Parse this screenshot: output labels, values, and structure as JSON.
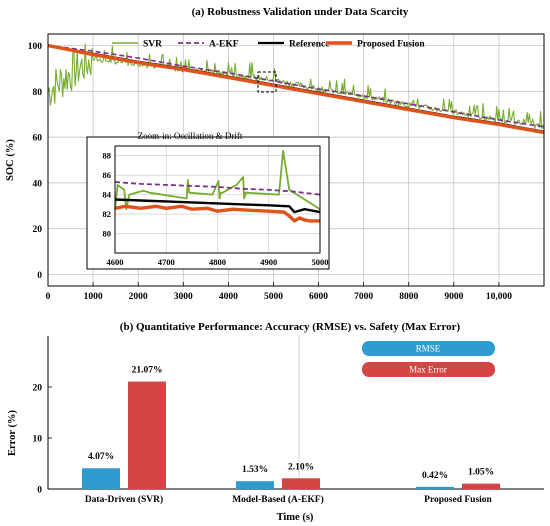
{
  "chart_data": [
    {
      "type": "line",
      "title": "(a) Robustness Validation under Data Scarcity",
      "xlabel": "",
      "ylabel": "SOC (%)",
      "xlim": [
        0,
        11000
      ],
      "ylim": [
        -5,
        105
      ],
      "grid": true,
      "legend_placement": "top",
      "x_ticks": [
        0,
        1000,
        2000,
        3000,
        4000,
        5000,
        6000,
        7000,
        8000,
        9000,
        10000
      ],
      "x_tick_labels": [
        "0",
        "1000",
        "2000",
        "3000",
        "4000",
        "5000",
        "6000",
        "7000",
        "8000",
        "9000",
        "10,000"
      ],
      "y_ticks": [
        0,
        20,
        40,
        60,
        80,
        100
      ],
      "y_tick_labels": [
        "0",
        "20",
        "40",
        "60",
        "80",
        "100"
      ],
      "series": [
        {
          "name": "SVR",
          "color": "#77ac30",
          "style": "solid",
          "x": [
            0,
            500,
            1000,
            2000,
            3000,
            4000,
            5000,
            6000,
            7000,
            8000,
            9000,
            10000,
            11000
          ],
          "y": [
            80,
            88,
            94,
            92,
            89.5,
            87.5,
            85,
            81,
            78,
            74,
            71,
            67.5,
            64.5
          ]
        },
        {
          "name": "A-EKF",
          "color": "#7e2f8e",
          "style": "dashed",
          "x": [
            0,
            1000,
            2000,
            3000,
            4000,
            5000,
            6000,
            7000,
            8000,
            9000,
            10000,
            11000
          ],
          "y": [
            100,
            97.5,
            94.5,
            91,
            88,
            84.5,
            81,
            78,
            74.5,
            71,
            67.5,
            64.5
          ]
        },
        {
          "name": "Reference",
          "color": "#000000",
          "style": "solid",
          "x": [
            0,
            1000,
            2000,
            3000,
            4000,
            5000,
            6000,
            7000,
            8000,
            9000,
            10000,
            11000
          ],
          "y": [
            100,
            96.5,
            93,
            90,
            86.5,
            83,
            79.5,
            76,
            72.5,
            69,
            66,
            62.5
          ]
        },
        {
          "name": "Proposed Fusion",
          "color": "#e0531c",
          "style": "solid",
          "x": [
            0,
            1000,
            2000,
            3000,
            4000,
            5000,
            6000,
            7000,
            8000,
            9000,
            10000,
            11000
          ],
          "y": [
            100,
            96,
            92.5,
            89.5,
            86,
            82.5,
            79,
            75.5,
            72,
            68.5,
            65.5,
            62
          ]
        }
      ],
      "inset": {
        "title": "Zoom-in: Oscillation & Drift",
        "xlim": [
          4600,
          5000
        ],
        "ylim": [
          78,
          89
        ],
        "x_ticks": [
          4600,
          4700,
          4800,
          4900,
          5000
        ],
        "x_tick_labels": [
          "4600",
          "4700",
          "4800",
          "4900",
          "5000"
        ],
        "y_ticks": [
          80,
          82,
          84,
          86,
          88
        ],
        "y_tick_labels": [
          "80",
          "82",
          "84",
          "86",
          "88"
        ],
        "series": [
          {
            "name": "SVR",
            "x": [
              4600,
              4605,
              4618,
              4622,
              4628,
              4655,
              4668,
              4740,
              4742,
              4745,
              4790,
              4802,
              4804,
              4806,
              4810,
              4837,
              4850,
              4852,
              4855,
              4920,
              4928,
              4940,
              5000
            ],
            "y": [
              82.5,
              85,
              84.5,
              82.5,
              84,
              84.4,
              84.2,
              83.6,
              85.5,
              84.2,
              84,
              85.4,
              83.6,
              84.2,
              84.2,
              85,
              85.8,
              83.6,
              84.2,
              84,
              88.5,
              84.5,
              82.5
            ]
          },
          {
            "name": "A-EKF",
            "x": [
              4600,
              4650,
              4700,
              4750,
              4800,
              4850,
              4900,
              4950,
              5000
            ],
            "y": [
              85.3,
              85.1,
              85,
              84.9,
              84.8,
              84.6,
              84.5,
              84.3,
              84
            ]
          },
          {
            "name": "Reference",
            "x": [
              4600,
              4650,
              4700,
              4750,
              4800,
              4850,
              4900,
              4940,
              4950,
              4970,
              5000
            ],
            "y": [
              83.5,
              83.4,
              83.3,
              83.2,
              83.1,
              83,
              82.9,
              82.8,
              82.2,
              82.5,
              82.2
            ]
          },
          {
            "name": "Proposed Fusion",
            "x": [
              4600,
              4620,
              4650,
              4680,
              4700,
              4730,
              4750,
              4780,
              4800,
              4830,
              4860,
              4900,
              4930,
              4940,
              4950,
              4960,
              4970,
              4980,
              5000
            ],
            "y": [
              82.6,
              82.8,
              82.6,
              82.8,
              82.6,
              82.8,
              82.5,
              82.6,
              82.3,
              82.5,
              82.4,
              82.3,
              82.2,
              81.8,
              81.3,
              81.6,
              81.4,
              81.3,
              81.3
            ]
          }
        ]
      }
    },
    {
      "type": "bar",
      "title": "(b) Quantitative Performance: Accuracy (RMSE) vs. Safety (Max Error)",
      "xlabel": "Time (s)",
      "ylabel": "Error (%)",
      "ylim": [
        0,
        30
      ],
      "y_ticks": [
        0,
        10,
        20
      ],
      "y_tick_labels": [
        "0",
        "10",
        "20"
      ],
      "grid": false,
      "legend_placement": "top-right",
      "categories": [
        "Data-Driven (SVR)",
        "Model-Based (A-EKF)",
        "Proposed Fusion"
      ],
      "series": [
        {
          "name": "RMSE",
          "color": "#2e9bd1",
          "values": [
            4.07,
            1.53,
            0.42
          ],
          "labels": [
            "4.07%",
            "1.53%",
            "0.42%"
          ]
        },
        {
          "name": "Max Error",
          "color": "#d64545",
          "values": [
            21.07,
            2.1,
            1.05
          ],
          "labels": [
            "21.07%",
            "2.10%",
            "1.05%"
          ]
        }
      ]
    }
  ]
}
